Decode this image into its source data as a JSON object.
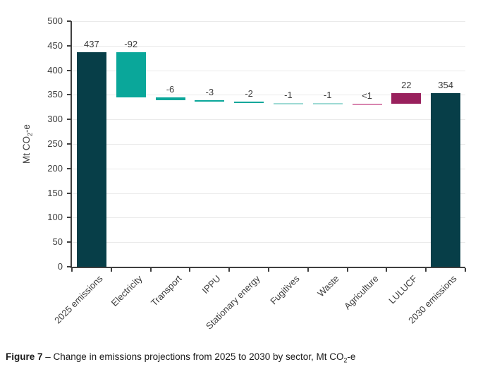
{
  "figure": {
    "caption_bold": "Figure 7",
    "caption_rest": " – Change in emissions projections from 2025 to 2030 by sector, Mt CO",
    "caption_sub": "2",
    "caption_tail": "-e"
  },
  "chart_data": {
    "type": "bar",
    "subtype": "waterfall",
    "title": "",
    "xlabel": "",
    "ylabel_pre": "Mt CO",
    "ylabel_sub": "2",
    "ylabel_post": "-e",
    "ylim": [
      0,
      500
    ],
    "ytick_step": 50,
    "grid": true,
    "legend": "none",
    "categories": [
      "2025 emissions",
      "Electricity",
      "Transport",
      "IPPU",
      "Stationary energy",
      "Fugitives",
      "Waste",
      "Agriculture",
      "LULUCF",
      "2030 emissions"
    ],
    "bars": [
      {
        "category": "2025 emissions",
        "value_label": "437",
        "from": 0,
        "to": 437,
        "color_key": "dark_teal"
      },
      {
        "category": "Electricity",
        "value_label": "-92",
        "from": 345,
        "to": 437,
        "color_key": "teal"
      },
      {
        "category": "Transport",
        "value_label": "-6",
        "from": 339,
        "to": 345,
        "color_key": "teal"
      },
      {
        "category": "IPPU",
        "value_label": "-3",
        "from": 336,
        "to": 339,
        "color_key": "teal"
      },
      {
        "category": "Stationary energy",
        "value_label": "-2",
        "from": 334,
        "to": 336,
        "color_key": "teal"
      },
      {
        "category": "Fugitives",
        "value_label": "-1",
        "from": 333,
        "to": 334,
        "color_key": "light_teal"
      },
      {
        "category": "Waste",
        "value_label": "-1",
        "from": 332,
        "to": 333,
        "color_key": "light_teal"
      },
      {
        "category": "Agriculture",
        "value_label": "<1",
        "from": 332,
        "to": 332,
        "color_key": "pink"
      },
      {
        "category": "LULUCF",
        "value_label": "22",
        "from": 332,
        "to": 354,
        "color_key": "magenta"
      },
      {
        "category": "2030 emissions",
        "value_label": "354",
        "from": 0,
        "to": 354,
        "color_key": "dark_teal"
      }
    ],
    "colors": {
      "dark_teal": "#073e48",
      "teal": "#0aa79a",
      "light_teal": "#9edad4",
      "pink": "#d986b0",
      "magenta": "#99215d"
    },
    "axis_color": "#3f3f3f",
    "grid_color": "#eaeaea",
    "text_color": "#3c3c3c"
  }
}
